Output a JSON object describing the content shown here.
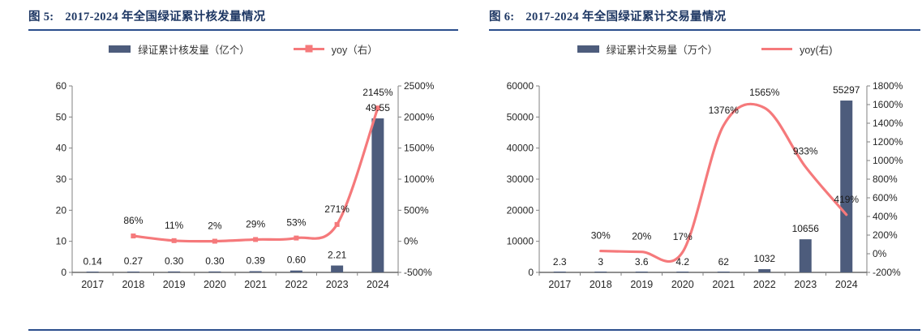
{
  "theme": {
    "title_color": "#1F3864",
    "rule_color": "#2B4E8C",
    "bar_color": "#4D5C7C",
    "line_color": "#F5797B"
  },
  "figures": [
    {
      "title_prefix": "图 5:",
      "title": "2017-2024 年全国绿证累计核发量情况"
    },
    {
      "title_prefix": "图 6:",
      "title": "2017-2024 年全国绿证累计交易量情况"
    }
  ],
  "chart_data": [
    {
      "type": "bar+line",
      "title": "2017-2024 年全国绿证累计核发量情况",
      "categories": [
        "2017",
        "2018",
        "2019",
        "2020",
        "2021",
        "2022",
        "2023",
        "2024"
      ],
      "series": [
        {
          "name": "绿证累计核发量（亿个）",
          "type": "bar",
          "axis": "left",
          "color": "#4D5C7C",
          "values": [
            0.14,
            0.27,
            0.3,
            0.3,
            0.39,
            0.6,
            2.21,
            49.55
          ],
          "labels": [
            "0.14",
            "0.27",
            "0.30",
            "0.30",
            "0.39",
            "0.60",
            "2.21",
            "49.55"
          ]
        },
        {
          "name": "yoy（右）",
          "type": "line",
          "axis": "right",
          "color": "#F5797B",
          "markers": true,
          "values": [
            null,
            86,
            11,
            2,
            29,
            53,
            271,
            2145
          ],
          "labels": [
            null,
            "86%",
            "11%",
            "2%",
            "29%",
            "53%",
            "271%",
            "2145%"
          ]
        }
      ],
      "left_axis": {
        "min": 0,
        "max": 60,
        "step": 10,
        "ticks": [
          "0",
          "10",
          "20",
          "30",
          "40",
          "50",
          "60"
        ]
      },
      "right_axis": {
        "min": -500,
        "max": 2500,
        "step": 500,
        "ticks": [
          "-500%",
          "0%",
          "500%",
          "1000%",
          "1500%",
          "2000%",
          "2500%"
        ]
      },
      "grid": false,
      "legend_position": "top"
    },
    {
      "type": "bar+line",
      "title": "2017-2024 年全国绿证累计交易量情况",
      "categories": [
        "2017",
        "2018",
        "2019",
        "2020",
        "2021",
        "2022",
        "2023",
        "2024"
      ],
      "series": [
        {
          "name": "绿证累计交易量（万个）",
          "type": "bar",
          "axis": "left",
          "color": "#4D5C7C",
          "values": [
            2.3,
            3,
            3.6,
            4.2,
            62,
            1032,
            10656,
            55297
          ],
          "labels": [
            "2.3",
            "3",
            "3.6",
            "4.2",
            "62",
            "1032",
            "10656",
            "55297"
          ]
        },
        {
          "name": "yoy(右)",
          "type": "line",
          "axis": "right",
          "color": "#F5797B",
          "markers": false,
          "values": [
            null,
            30,
            20,
            17,
            1376,
            1565,
            933,
            419
          ],
          "labels": [
            null,
            "30%",
            "20%",
            "17%",
            "1376%",
            "1565%",
            "933%",
            "419%"
          ]
        }
      ],
      "left_axis": {
        "min": 0,
        "max": 60000,
        "step": 10000,
        "ticks": [
          "0",
          "10000",
          "20000",
          "30000",
          "40000",
          "50000",
          "60000"
        ]
      },
      "right_axis": {
        "min": -200,
        "max": 1800,
        "step": 200,
        "ticks": [
          "-200%",
          "0%",
          "200%",
          "400%",
          "600%",
          "800%",
          "1000%",
          "1200%",
          "1400%",
          "1600%",
          "1800%"
        ]
      },
      "grid": false,
      "legend_position": "top"
    }
  ]
}
